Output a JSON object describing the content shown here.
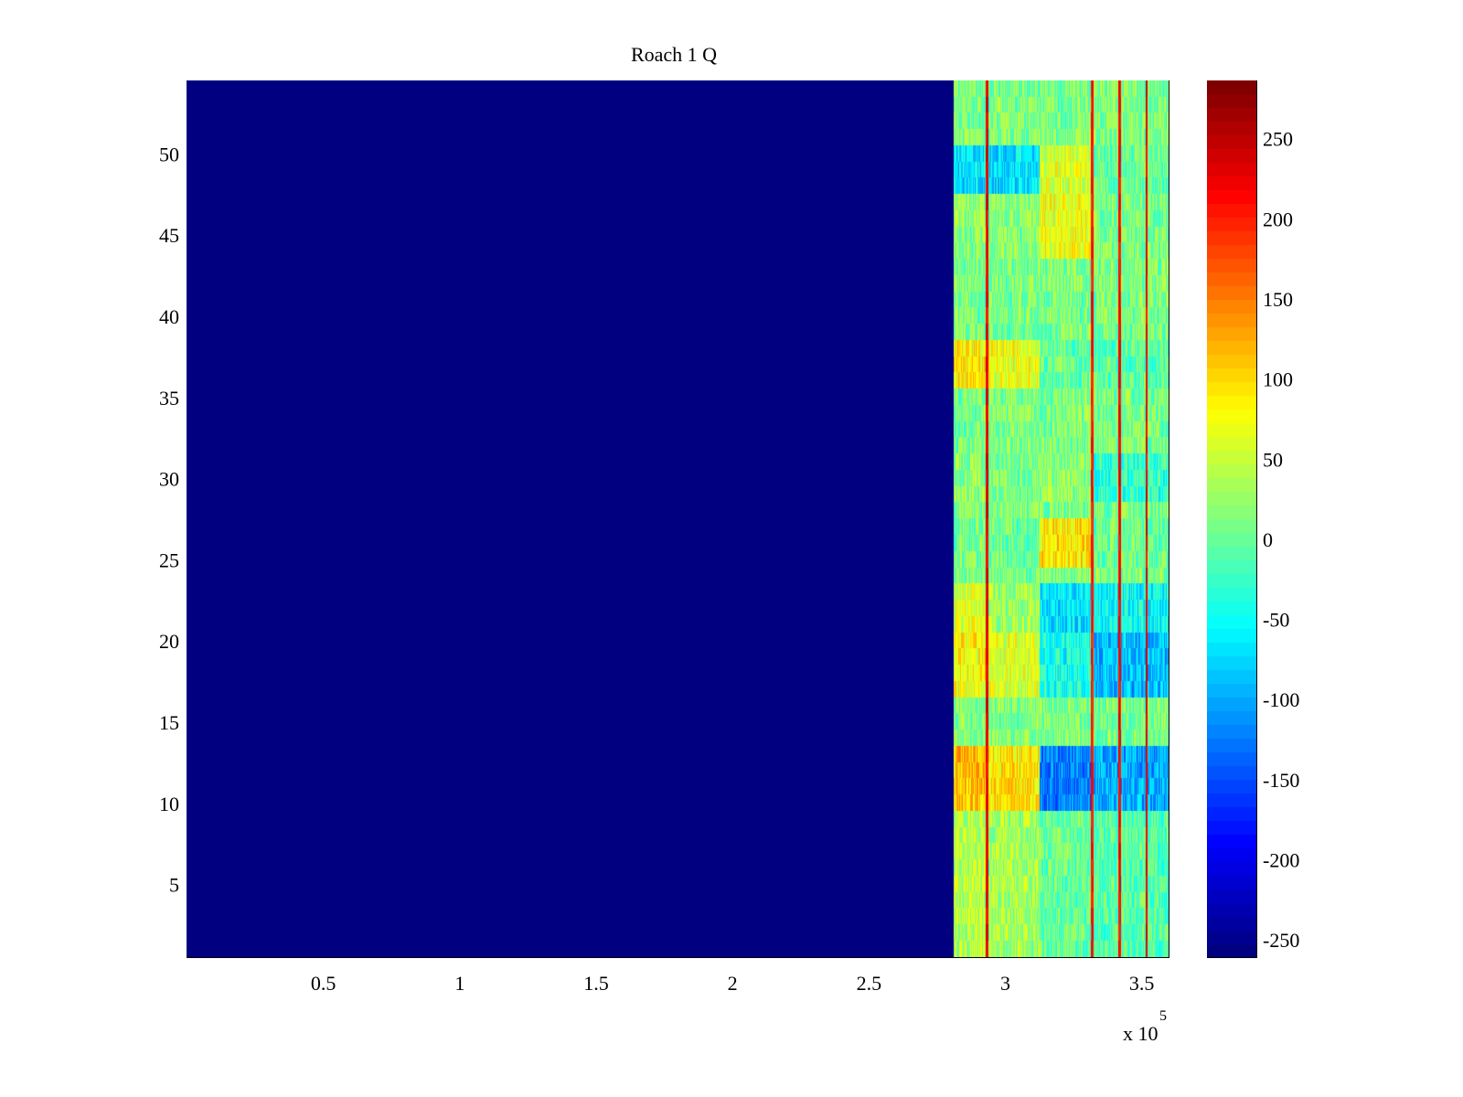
{
  "chart_data": {
    "type": "heatmap",
    "title": "Roach 1 Q",
    "xlabel": "",
    "ylabel": "",
    "x_exponent_label": "x 10",
    "x_exponent_power": "5",
    "xlim": [
      0,
      3.6
    ],
    "ylim": [
      0.5,
      54.5
    ],
    "x_ticks": [
      0.5,
      1,
      1.5,
      2,
      2.5,
      3,
      3.5
    ],
    "x_tick_labels": [
      "0.5",
      "1",
      "1.5",
      "2",
      "2.5",
      "3",
      "3.5"
    ],
    "y_ticks": [
      5,
      10,
      15,
      20,
      25,
      30,
      35,
      40,
      45,
      50
    ],
    "y_tick_labels": [
      "5",
      "10",
      "15",
      "20",
      "25",
      "30",
      "35",
      "40",
      "45",
      "50"
    ],
    "rows": 54,
    "colormap": "jet",
    "clim": [
      -261,
      286
    ],
    "colorbar_ticks": [
      -250,
      -200,
      -150,
      -100,
      -50,
      0,
      50,
      100,
      150,
      200,
      250
    ],
    "colorbar_tick_labels": [
      "-250",
      "-200",
      "-150",
      "-100",
      "-50",
      "0",
      "50",
      "100",
      "150",
      "200",
      "250"
    ],
    "empty_region": {
      "x_from": 0,
      "x_to": 2.815,
      "value": -261
    },
    "data_region_x": [
      2.815,
      3.6
    ],
    "columns": 264,
    "red_columns": [
      {
        "x": 2.935,
        "value": 250
      },
      {
        "x": 3.32,
        "value": 230
      },
      {
        "x": 3.42,
        "value": 240
      },
      {
        "x": 3.52,
        "value": 250
      }
    ],
    "base_value": 10,
    "region_bounds": [
      2.815,
      2.93,
      3.13,
      3.32,
      3.6
    ],
    "row_overrides": [
      {
        "rows": [
          48,
          50
        ],
        "means": [
          -70,
          -70,
          60,
          0
        ]
      },
      {
        "rows": [
          44,
          47
        ],
        "means": [
          20,
          20,
          70,
          10
        ]
      },
      {
        "rows": [
          36,
          38
        ],
        "means": [
          90,
          70,
          0,
          -10
        ]
      },
      {
        "rows": [
          29,
          31
        ],
        "means": [
          20,
          10,
          20,
          -30
        ]
      },
      {
        "rows": [
          25,
          27
        ],
        "means": [
          10,
          0,
          95,
          0
        ]
      },
      {
        "rows": [
          21,
          23
        ],
        "means": [
          60,
          30,
          -70,
          -50
        ]
      },
      {
        "rows": [
          17,
          20
        ],
        "means": [
          80,
          60,
          -40,
          -90
        ]
      },
      {
        "rows": [
          10,
          13
        ],
        "means": [
          110,
          90,
          -120,
          -100
        ]
      },
      {
        "rows": [
          1,
          9
        ],
        "means": [
          40,
          30,
          0,
          -10
        ]
      }
    ]
  }
}
